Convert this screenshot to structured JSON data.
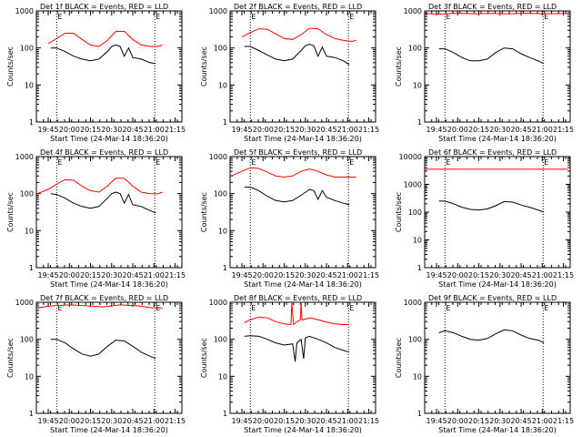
{
  "chart_data": [
    {
      "type": "line",
      "title": "Det 1f BLACK = Events, RED = LLD",
      "xlabel": "Start Time (24-Mar-14 18:36:20)",
      "ylabel": "Counts/sec",
      "yscale": "log",
      "ylim": [
        1,
        1000
      ],
      "xticks": [
        "19:45",
        "20:00",
        "20:15",
        "20:30",
        "20:45",
        "21:00",
        "21:15"
      ],
      "yticks": [
        "1",
        "10",
        "100",
        "1000"
      ],
      "markers": [
        "E",
        "E"
      ],
      "series": [
        {
          "color": "#ff0000",
          "t": [
            19.75,
            19.85,
            19.95,
            20.05,
            20.15,
            20.25,
            20.35,
            20.45,
            20.55,
            20.65,
            20.75,
            20.85,
            20.95,
            21.05,
            21.1
          ],
          "y": [
            130,
            180,
            250,
            250,
            170,
            120,
            110,
            160,
            280,
            280,
            170,
            120,
            110,
            110,
            120
          ]
        },
        {
          "color": "#000000",
          "t": [
            19.78,
            19.85,
            19.95,
            20.05,
            20.15,
            20.25,
            20.35,
            20.45,
            20.5,
            20.55,
            20.6,
            20.65,
            20.7,
            20.75,
            20.85,
            20.95,
            21.02
          ],
          "y": [
            100,
            100,
            80,
            60,
            50,
            45,
            50,
            80,
            110,
            120,
            110,
            60,
            100,
            55,
            50,
            40,
            38
          ]
        }
      ]
    },
    {
      "type": "line",
      "title": "Det 2f BLACK = Events, RED = LLD",
      "xlabel": "Start Time (24-Mar-14 18:36:20)",
      "ylabel": "Counts/sec",
      "yscale": "log",
      "ylim": [
        1,
        1000
      ],
      "xticks": [
        "19:45",
        "20:00",
        "20:15",
        "20:30",
        "20:45",
        "21:00",
        "21:15"
      ],
      "yticks": [
        "1",
        "10",
        "100",
        "1000"
      ],
      "markers": [
        "E",
        "E"
      ],
      "series": [
        {
          "color": "#ff0000",
          "t": [
            19.75,
            19.85,
            19.95,
            20.05,
            20.15,
            20.25,
            20.35,
            20.45,
            20.55,
            20.65,
            20.75,
            20.85,
            20.95,
            21.05,
            21.1
          ],
          "y": [
            200,
            260,
            330,
            320,
            240,
            180,
            170,
            230,
            340,
            330,
            230,
            180,
            160,
            150,
            160
          ]
        },
        {
          "color": "#000000",
          "t": [
            19.78,
            19.85,
            19.95,
            20.05,
            20.15,
            20.25,
            20.35,
            20.45,
            20.5,
            20.55,
            20.6,
            20.65,
            20.7,
            20.75,
            20.85,
            20.95,
            21.02
          ],
          "y": [
            110,
            110,
            85,
            65,
            50,
            45,
            50,
            85,
            115,
            125,
            115,
            60,
            105,
            60,
            55,
            45,
            35
          ]
        }
      ]
    },
    {
      "type": "line",
      "title": "Det 3f BLACK = Events, RED = LLD",
      "xlabel": "Start Time (24-Mar-14 18:36:20)",
      "ylabel": "Counts/sec",
      "yscale": "log",
      "ylim": [
        1,
        1000
      ],
      "xticks": [
        "19:45",
        "20:00",
        "20:15",
        "20:30",
        "20:45",
        "21:00",
        "21:15"
      ],
      "yticks": [
        "1",
        "10",
        "100",
        "1000"
      ],
      "markers": [
        "E",
        "E"
      ],
      "series": [
        {
          "color": "#ff0000",
          "t": [
            19.61,
            19.8,
            20.0,
            20.2,
            20.4,
            20.6,
            20.8,
            21.0,
            21.2,
            21.3
          ],
          "y": [
            850,
            820,
            870,
            840,
            860,
            830,
            870,
            840,
            850,
            850
          ]
        },
        {
          "color": "#000000",
          "t": [
            19.78,
            19.85,
            19.95,
            20.05,
            20.15,
            20.25,
            20.35,
            20.45,
            20.55,
            20.65,
            20.75,
            20.85,
            20.95,
            21.02
          ],
          "y": [
            95,
            95,
            75,
            55,
            45,
            45,
            50,
            75,
            100,
            95,
            70,
            55,
            45,
            38
          ]
        }
      ]
    },
    {
      "type": "line",
      "title": "Det 4f BLACK = Events, RED = LLD",
      "xlabel": "Start Time (24-Mar-14 18:36:20)",
      "ylabel": "Counts/sec",
      "yscale": "log",
      "ylim": [
        1,
        1000
      ],
      "xticks": [
        "19:45",
        "20:00",
        "20:15",
        "20:30",
        "20:45",
        "21:00",
        "21:15"
      ],
      "yticks": [
        "1",
        "10",
        "100",
        "1000"
      ],
      "markers": [
        "E",
        "E"
      ],
      "series": [
        {
          "color": "#ff0000",
          "t": [
            19.62,
            19.75,
            19.85,
            19.95,
            20.05,
            20.15,
            20.25,
            20.35,
            20.45,
            20.55,
            20.65,
            20.75,
            20.85,
            20.95,
            21.05,
            21.1
          ],
          "y": [
            100,
            130,
            180,
            240,
            230,
            160,
            120,
            110,
            160,
            260,
            260,
            160,
            110,
            100,
            100,
            110
          ]
        },
        {
          "color": "#000000",
          "t": [
            19.78,
            19.85,
            19.95,
            20.05,
            20.15,
            20.25,
            20.35,
            20.45,
            20.5,
            20.55,
            20.6,
            20.65,
            20.7,
            20.75,
            20.85,
            20.95,
            21.02
          ],
          "y": [
            100,
            95,
            75,
            55,
            45,
            40,
            45,
            75,
            100,
            110,
            100,
            55,
            95,
            50,
            45,
            35,
            30
          ]
        }
      ]
    },
    {
      "type": "line",
      "title": "Det 5f BLACK = Events, RED = LLD",
      "xlabel": "Start Time (24-Mar-14 18:36:20)",
      "ylabel": "Counts/sec",
      "yscale": "log",
      "ylim": [
        1,
        1000
      ],
      "xticks": [
        "19:45",
        "20:00",
        "20:15",
        "20:30",
        "20:45",
        "21:00",
        "21:15"
      ],
      "yticks": [
        "1",
        "10",
        "100",
        "1000"
      ],
      "markers": [
        "E",
        "E"
      ],
      "series": [
        {
          "color": "#ff0000",
          "t": [
            19.62,
            19.75,
            19.85,
            19.95,
            20.05,
            20.15,
            20.25,
            20.35,
            20.45,
            20.55,
            20.65,
            20.75,
            20.85,
            20.95,
            21.05,
            21.1
          ],
          "y": [
            300,
            400,
            500,
            480,
            380,
            300,
            280,
            300,
            400,
            460,
            400,
            320,
            280,
            280,
            280,
            280
          ]
        },
        {
          "color": "#000000",
          "t": [
            19.78,
            19.85,
            19.95,
            20.05,
            20.15,
            20.25,
            20.35,
            20.45,
            20.55,
            20.6,
            20.65,
            20.7,
            20.75,
            20.85,
            20.95,
            21.02
          ],
          "y": [
            150,
            150,
            120,
            85,
            65,
            60,
            65,
            90,
            130,
            120,
            70,
            120,
            80,
            65,
            55,
            50
          ]
        }
      ]
    },
    {
      "type": "line",
      "title": "Det 6f BLACK = Events, RED = LLD",
      "xlabel": "Start Time (24-Mar-14 18:36:20)",
      "ylabel": "Counts/sec",
      "yscale": "log",
      "ylim": [
        1,
        10000
      ],
      "xticks": [
        "19:45",
        "20:00",
        "20:15",
        "20:30",
        "20:45",
        "21:00",
        "21:15"
      ],
      "yticks": [
        "1",
        "10",
        "100",
        "1000",
        "10000"
      ],
      "markers": [
        "E",
        "E"
      ],
      "series": [
        {
          "color": "#ff0000",
          "t": [
            19.61,
            21.3
          ],
          "y": [
            3500,
            3500
          ]
        },
        {
          "color": "#000000",
          "t": [
            19.78,
            19.85,
            19.95,
            20.05,
            20.15,
            20.25,
            20.35,
            20.45,
            20.55,
            20.65,
            20.75,
            20.85,
            20.95,
            21.02
          ],
          "y": [
            250,
            250,
            200,
            150,
            125,
            120,
            130,
            170,
            240,
            230,
            180,
            150,
            120,
            100
          ]
        }
      ]
    },
    {
      "type": "line",
      "title": "Det 7f BLACK = Events, RED = LLD",
      "xlabel": "Start Time (24-Mar-14 18:36:20)",
      "ylabel": "Counts/sec",
      "yscale": "log",
      "ylim": [
        1,
        1000
      ],
      "xticks": [
        "19:45",
        "20:00",
        "20:15",
        "20:30",
        "20:45",
        "21:00",
        "21:15"
      ],
      "yticks": [
        "1",
        "10",
        "100",
        "1000"
      ],
      "markers": [
        "E",
        "E"
      ],
      "series": [
        {
          "color": "#ff0000",
          "t": [
            19.61,
            19.8,
            20.0,
            20.2,
            20.4,
            20.6,
            20.8,
            21.0,
            21.1
          ],
          "y": [
            700,
            800,
            850,
            800,
            750,
            850,
            800,
            700,
            700
          ]
        },
        {
          "color": "#000000",
          "t": [
            19.78,
            19.85,
            19.95,
            20.05,
            20.15,
            20.25,
            20.35,
            20.45,
            20.55,
            20.65,
            20.75,
            20.85,
            20.95,
            21.02
          ],
          "y": [
            100,
            100,
            80,
            55,
            40,
            35,
            40,
            65,
            95,
            90,
            65,
            45,
            35,
            30
          ]
        }
      ]
    },
    {
      "type": "line",
      "title": "Det 8f BLACK = Events, RED = LLD",
      "xlabel": "Start Time (24-Mar-14 18:36:20)",
      "ylabel": "Counts/sec",
      "yscale": "log",
      "ylim": [
        1,
        1000
      ],
      "xticks": [
        "19:45",
        "20:00",
        "20:15",
        "20:30",
        "20:45",
        "21:00",
        "21:15"
      ],
      "yticks": [
        "1",
        "10",
        "100",
        "1000"
      ],
      "markers": [
        "E",
        "E"
      ],
      "series": [
        {
          "color": "#ff0000",
          "t": [
            19.78,
            19.85,
            19.95,
            20.05,
            20.15,
            20.25,
            20.33,
            20.34,
            20.36,
            20.4,
            20.44,
            20.45,
            20.46,
            20.5,
            20.55,
            20.65,
            20.75,
            20.85,
            20.95,
            21.02
          ],
          "y": [
            280,
            340,
            400,
            380,
            300,
            260,
            250,
            1000,
            250,
            300,
            330,
            1000,
            330,
            350,
            380,
            340,
            290,
            260,
            250,
            250
          ]
        },
        {
          "color": "#000000",
          "t": [
            19.78,
            19.85,
            19.95,
            20.05,
            20.15,
            20.25,
            20.35,
            20.38,
            20.4,
            20.45,
            20.48,
            20.5,
            20.55,
            20.65,
            20.75,
            20.85,
            20.95,
            21.02
          ],
          "y": [
            120,
            125,
            120,
            100,
            80,
            70,
            75,
            25,
            80,
            100,
            30,
            110,
            120,
            100,
            80,
            60,
            50,
            45
          ]
        }
      ]
    },
    {
      "type": "line",
      "title": "Det 9f BLACK = Events, RED = LLD",
      "xlabel": "Start Time (24-Mar-14 18:36:20)",
      "ylabel": "Counts/sec",
      "yscale": "log",
      "ylim": [
        1,
        1000
      ],
      "xticks": [
        "19:45",
        "20:00",
        "20:15",
        "20:30",
        "20:45",
        "21:00",
        "21:15"
      ],
      "yticks": [
        "1",
        "10",
        "100",
        "1000"
      ],
      "markers": [
        "E",
        "E"
      ],
      "series": [
        {
          "color": "#000000",
          "t": [
            19.78,
            19.85,
            19.95,
            20.05,
            20.15,
            20.25,
            20.35,
            20.45,
            20.55,
            20.65,
            20.75,
            20.85,
            20.95,
            21.02
          ],
          "y": [
            150,
            170,
            150,
            120,
            100,
            95,
            105,
            140,
            180,
            170,
            130,
            105,
            95,
            80
          ]
        }
      ]
    }
  ]
}
